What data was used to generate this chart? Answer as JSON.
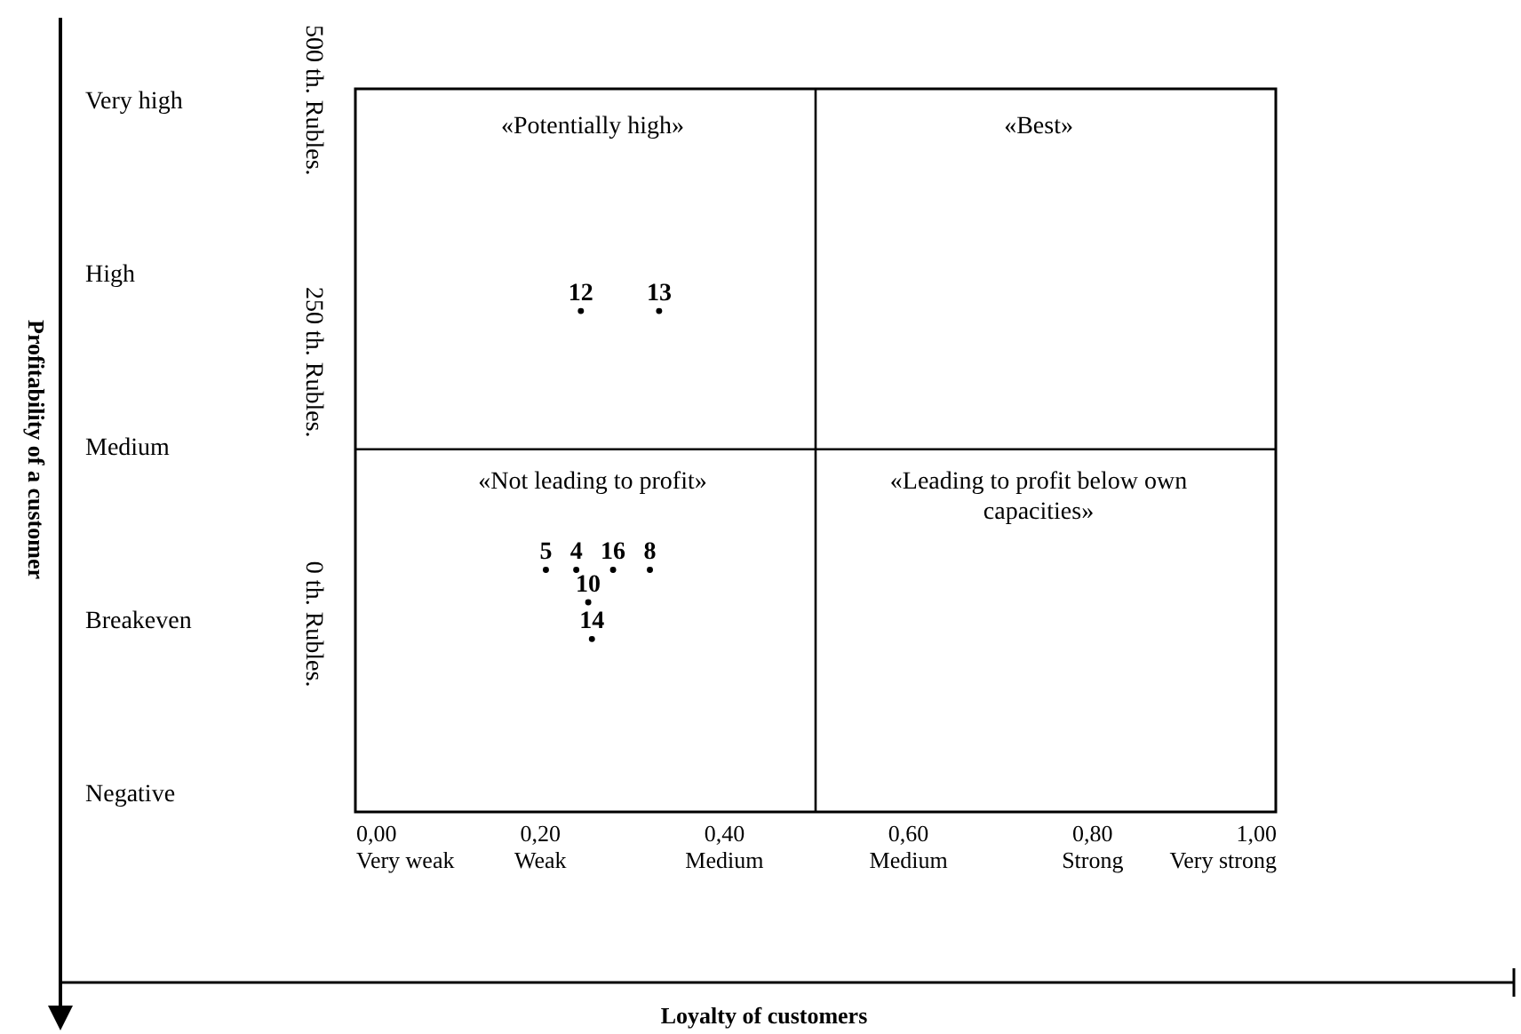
{
  "chart_data": {
    "type": "scatter",
    "xlim": [
      0,
      1
    ],
    "xticks": [
      {
        "value": 0,
        "label": "0,00\nVery weak"
      },
      {
        "value": 0.2,
        "label": "0,20\nWeak"
      },
      {
        "value": 0.4,
        "label": "0,40\nMedium"
      },
      {
        "value": 0.6,
        "label": "0,60\nMedium"
      },
      {
        "value": 0.8,
        "label": "0,80\nStrong"
      },
      {
        "value": 1,
        "label": "1,00\nVery strong"
      }
    ],
    "ylim": [
      -180,
      510
    ],
    "yticks": [
      {
        "value": 0,
        "label": "0 th. Rubles."
      },
      {
        "value": 250,
        "label": "250 th. Rubles."
      },
      {
        "value": 500,
        "label": "500 th. Rubles."
      }
    ],
    "series": [
      {
        "name": "12",
        "color": "#000000",
        "x": [
          0.245
        ],
        "values": [
          298
        ]
      },
      {
        "name": "13",
        "color": "#000000",
        "x": [
          0.33
        ],
        "values": [
          298
        ]
      },
      {
        "name": "5",
        "color": "#000000",
        "x": [
          0.207
        ],
        "values": [
          51
        ]
      },
      {
        "name": "4",
        "color": "#000000",
        "x": [
          0.24
        ],
        "values": [
          51
        ]
      },
      {
        "name": "16",
        "color": "#000000",
        "x": [
          0.28
        ],
        "values": [
          51
        ]
      },
      {
        "name": "8",
        "color": "#000000",
        "x": [
          0.32
        ],
        "values": [
          51
        ]
      },
      {
        "name": "10",
        "color": "#000000",
        "x": [
          0.253
        ],
        "values": [
          20
        ]
      },
      {
        "name": "14",
        "color": "#000000",
        "x": [
          0.257
        ],
        "values": [
          -15
        ]
      }
    ],
    "ref_lines": [
      {
        "axis": "x",
        "value": 0.5,
        "color": "#000000"
      },
      {
        "axis": "y",
        "value": 166,
        "color": "#000000"
      }
    ],
    "annotations": [
      "Very high",
      "High",
      "Medium",
      "Breakeven",
      "Negative",
      "«Potentially high»",
      "«Best»",
      "«Not leading to profit»",
      "«Leading to profit below own\ncapacities»",
      "Profitability of a customer",
      "Loyalty of customers"
    ]
  }
}
